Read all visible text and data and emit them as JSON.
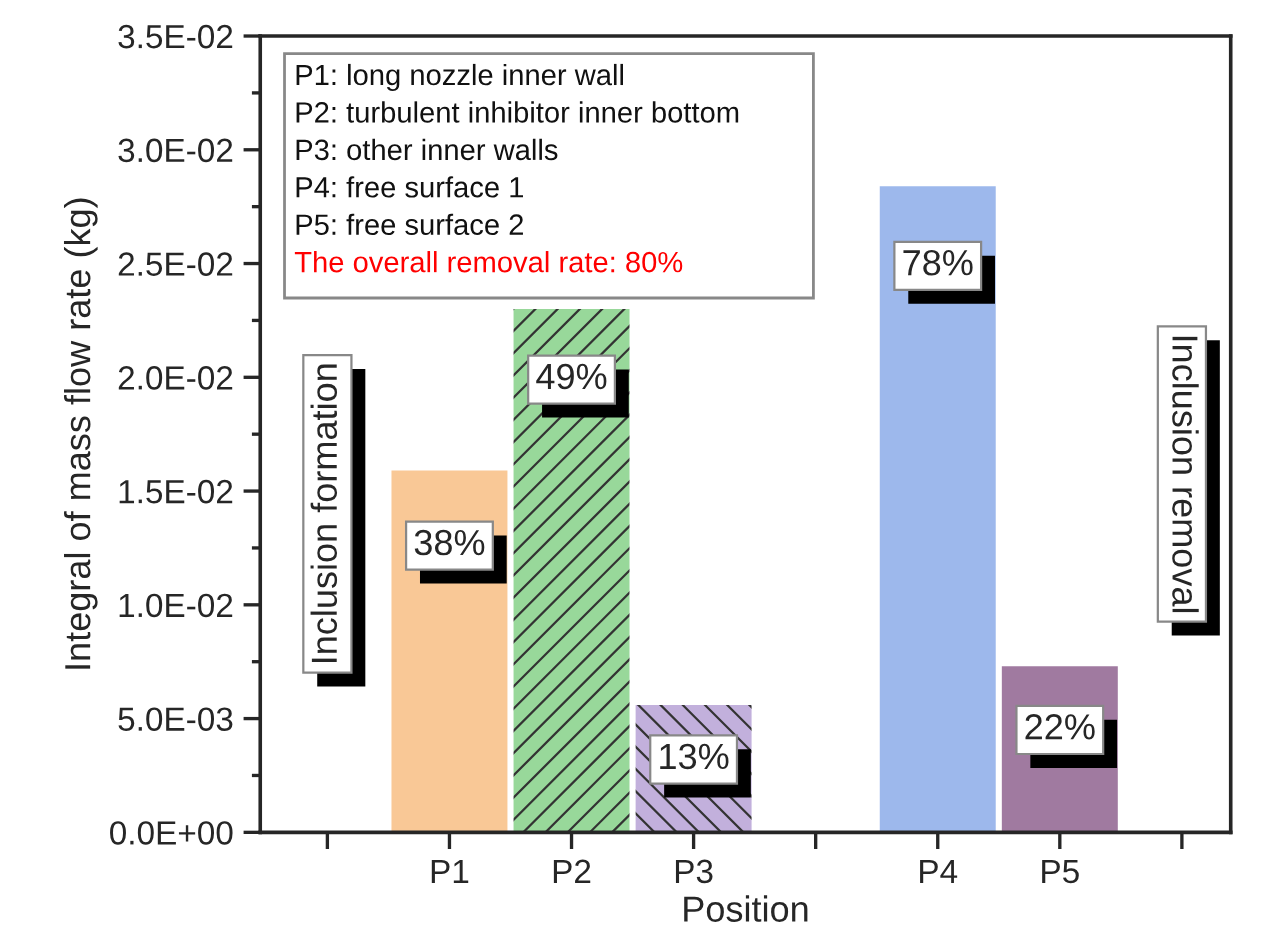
{
  "chart_data": {
    "type": "bar",
    "xlabel": "Position",
    "ylabel": "Integral of mass flow rate (kg)",
    "categories": [
      null,
      "P1",
      "P2",
      "P3",
      null,
      "P4",
      "P5",
      null
    ],
    "values": [
      null,
      0.0159,
      0.023,
      0.0056,
      null,
      0.0284,
      0.0073,
      null
    ],
    "colors": [
      null,
      "#f9c896",
      "#98d89a",
      "#c2b0dc",
      null,
      "#9db8ec",
      "#a07aa0",
      null
    ],
    "ylim": [
      0,
      0.035
    ],
    "yticks": [
      {
        "value": 0,
        "label": "0.0E+00"
      },
      {
        "value": 0.005,
        "label": "5.0E-03"
      },
      {
        "value": 0.01,
        "label": "1.0E-02"
      },
      {
        "value": 0.015,
        "label": "1.5E-02"
      },
      {
        "value": 0.02,
        "label": "2.0E-02"
      },
      {
        "value": 0.025,
        "label": "2.5E-02"
      },
      {
        "value": 0.03,
        "label": "3.0E-02"
      },
      {
        "value": 0.035,
        "label": "3.5E-02"
      }
    ],
    "grid": false,
    "legend": false,
    "annotations": [
      "P1: long nozzle inner wall",
      "P2: turbulent inhibitor inner bottom",
      "P3: other inner walls",
      "P4: free surface 1",
      "P5: free surface 2",
      "The overall removal rate: 80%",
      "Inclusion formation",
      "Inclusion removal",
      {
        "text": "38%",
        "x": "P1",
        "y": 0.0126
      },
      {
        "text": "49%",
        "x": "P2",
        "y": 0.0199
      },
      {
        "text": "13%",
        "x": "P3",
        "y": 0.0032
      },
      {
        "text": "78%",
        "x": "P4",
        "y": 0.0249
      },
      {
        "text": "22%",
        "x": "P5",
        "y": 0.0045
      }
    ]
  }
}
